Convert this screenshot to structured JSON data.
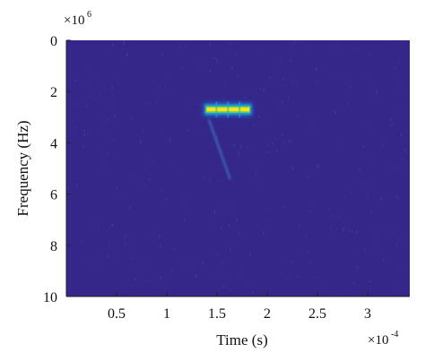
{
  "chart_data": {
    "type": "heatmap",
    "title": "",
    "xlabel": "Time (s)",
    "ylabel": "Frequency (Hz)",
    "x_exponent_label": "×10",
    "x_exponent_power": "-4",
    "y_exponent_label": "×10",
    "y_exponent_power": "6",
    "xlim": [
      0,
      3.42
    ],
    "ylim": [
      0,
      10
    ],
    "y_axis_direction": "reversed",
    "x_ticks": [
      {
        "value": 0.5,
        "label": "0.5"
      },
      {
        "value": 1.0,
        "label": "1"
      },
      {
        "value": 1.5,
        "label": "1.5"
      },
      {
        "value": 2.0,
        "label": "2"
      },
      {
        "value": 2.5,
        "label": "2.5"
      },
      {
        "value": 3.0,
        "label": "3"
      }
    ],
    "y_ticks": [
      {
        "value": 0,
        "label": "0"
      },
      {
        "value": 2,
        "label": "2"
      },
      {
        "value": 4,
        "label": "4"
      },
      {
        "value": 6,
        "label": "6"
      },
      {
        "value": 8,
        "label": "8"
      },
      {
        "value": 10,
        "label": "10"
      }
    ],
    "grid": false,
    "colormap": "parula",
    "background_intensity": 0.05,
    "features": [
      {
        "name": "strong tone",
        "shape": "horizontal band",
        "time_start": 1.38,
        "time_end": 1.84,
        "frequency": 2.7,
        "intensity": 1.0
      },
      {
        "name": "faint chirp",
        "shape": "diagonal streak",
        "time_start": 1.42,
        "time_end": 1.63,
        "frequency_start": 3.1,
        "frequency_end": 5.4,
        "intensity": 0.3
      }
    ]
  },
  "colors": {
    "background": "#35278a",
    "band_core": "#f5e61e",
    "band_mid": "#7fd03a",
    "band_edge": "#21a8d6",
    "band_halo": "#1f6fd0",
    "chirp": "#3c8bd6",
    "axis": "#222222"
  }
}
